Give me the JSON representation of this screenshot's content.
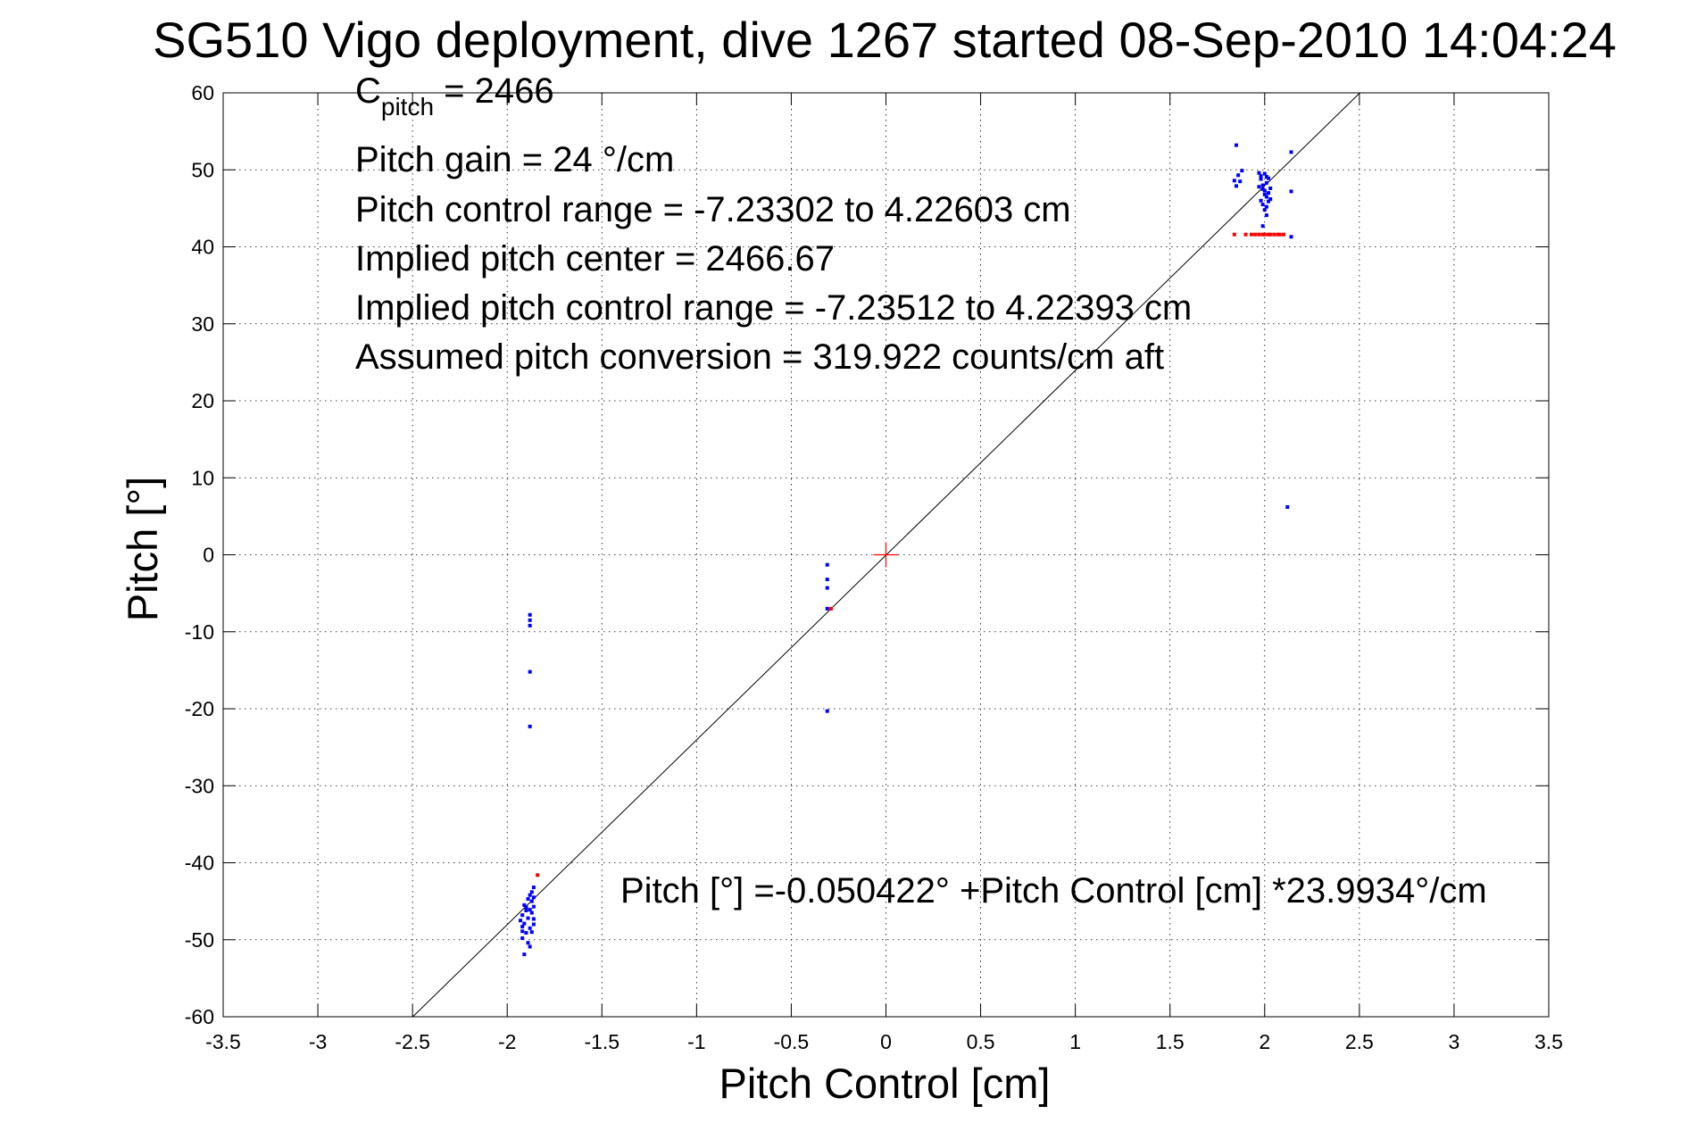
{
  "chart_data": {
    "type": "scatter",
    "title": "SG510 Vigo deployment, dive 1267 started 08-Sep-2010 14:04:24",
    "xlabel": "Pitch Control [cm]",
    "ylabel": "Pitch [°]",
    "xlim": [
      -3.5,
      3.5
    ],
    "ylim": [
      -60,
      60
    ],
    "xticks": [
      -3.5,
      -3,
      -2.5,
      -2,
      -1.5,
      -1,
      -0.5,
      0,
      0.5,
      1,
      1.5,
      2,
      2.5,
      3,
      3.5
    ],
    "xtick_labels": [
      "-3.5",
      "-3",
      "-2.5",
      "-2",
      "-1.5",
      "-1",
      "-0.5",
      "0",
      "0.5",
      "1",
      "1.5",
      "2",
      "2.5",
      "3",
      "3.5"
    ],
    "yticks": [
      -60,
      -50,
      -40,
      -30,
      -20,
      -10,
      0,
      10,
      20,
      30,
      40,
      50,
      60
    ],
    "ytick_labels": [
      "-60",
      "-50",
      "-40",
      "-30",
      "-20",
      "-10",
      "0",
      "10",
      "20",
      "30",
      "40",
      "50",
      "60"
    ],
    "grid": true,
    "annotations": {
      "c_pitch_main": "C",
      "c_pitch_sub": "pitch",
      "c_pitch_value": " = 2466",
      "lines": [
        "Pitch gain = 24 °/cm",
        "Pitch control range = -7.23302 to 4.22603 cm",
        "Implied pitch center = 2466.67",
        "Implied pitch control range = -7.23512 to 4.22393 cm",
        "Assumed pitch conversion = 319.922 counts/cm aft"
      ],
      "fit_equation": "Pitch [°] =-0.050422° +Pitch Control [cm] *23.9934°/cm"
    },
    "fit_line": {
      "intercept": -0.050422,
      "slope": 23.9934,
      "color": "#000000"
    },
    "center_marker": {
      "x": 0,
      "y": 0,
      "color": "#ff0000"
    },
    "series": [
      {
        "color": "#0000ff",
        "points": [
          [
            -1.88,
            -7.8
          ],
          [
            -1.88,
            -8.5
          ],
          [
            -1.88,
            -9.2
          ],
          [
            -1.88,
            -15.2
          ],
          [
            -1.88,
            -22.3
          ],
          [
            -1.91,
            -45.5
          ],
          [
            -1.9,
            -46.2
          ],
          [
            -1.92,
            -46.8
          ],
          [
            -1.89,
            -47.2
          ],
          [
            -1.91,
            -47.9
          ],
          [
            -1.92,
            -48.3
          ],
          [
            -1.9,
            -49.1
          ],
          [
            -1.92,
            -49.8
          ],
          [
            -1.89,
            -50.4
          ],
          [
            -1.91,
            -51.9
          ],
          [
            -1.88,
            -46.1
          ],
          [
            -1.87,
            -45.0
          ],
          [
            -1.86,
            -44.5
          ],
          [
            -1.87,
            -43.8
          ],
          [
            -1.86,
            -43.2
          ],
          [
            -1.88,
            -48.5
          ],
          [
            -1.87,
            -49.0
          ],
          [
            -1.86,
            -47.3
          ],
          [
            -1.89,
            -44.7
          ],
          [
            -1.9,
            -45.8
          ],
          [
            -1.93,
            -47.5
          ],
          [
            -1.92,
            -48.9
          ],
          [
            -1.88,
            -50.9
          ],
          [
            -1.86,
            -48.0
          ],
          [
            -1.87,
            -46.5
          ],
          [
            -1.88,
            -44.2
          ],
          [
            -1.86,
            -45.7
          ],
          [
            -0.31,
            -1.3
          ],
          [
            -0.31,
            -3.2
          ],
          [
            -0.31,
            -4.3
          ],
          [
            -0.31,
            -7.0
          ],
          [
            -0.31,
            -20.3
          ],
          [
            1.85,
            53.2
          ],
          [
            1.84,
            48.6
          ],
          [
            1.85,
            47.9
          ],
          [
            1.86,
            49.3
          ],
          [
            1.87,
            48.5
          ],
          [
            1.88,
            49.9
          ],
          [
            1.97,
            49.6
          ],
          [
            1.98,
            48.8
          ],
          [
            1.99,
            48.0
          ],
          [
            2.0,
            47.3
          ],
          [
            2.01,
            46.5
          ],
          [
            2.02,
            45.9
          ],
          [
            1.98,
            49.2
          ],
          [
            1.99,
            47.5
          ],
          [
            2.0,
            46.8
          ],
          [
            2.01,
            48.3
          ],
          [
            2.02,
            47.0
          ],
          [
            2.03,
            46.2
          ],
          [
            1.99,
            45.5
          ],
          [
            2.0,
            44.8
          ],
          [
            2.01,
            44.1
          ],
          [
            1.98,
            46.0
          ],
          [
            2.02,
            48.9
          ],
          [
            2.0,
            49.5
          ],
          [
            2.14,
            52.3
          ],
          [
            2.14,
            47.2
          ],
          [
            2.12,
            6.2
          ],
          [
            2.14,
            41.3
          ],
          [
            2.03,
            47.6
          ],
          [
            1.97,
            47.8
          ],
          [
            2.01,
            45.2
          ],
          [
            1.99,
            42.7
          ],
          [
            2.01,
            49.1
          ]
        ]
      },
      {
        "color": "#ff0000",
        "points": [
          [
            -1.84,
            -41.6
          ],
          [
            -0.29,
            -7.0
          ],
          [
            1.84,
            41.6
          ],
          [
            1.9,
            41.6
          ],
          [
            1.93,
            41.6
          ],
          [
            1.95,
            41.6
          ],
          [
            1.97,
            41.6
          ],
          [
            1.99,
            41.6
          ],
          [
            2.0,
            41.6
          ],
          [
            2.02,
            41.6
          ],
          [
            2.03,
            41.6
          ],
          [
            2.05,
            41.6
          ],
          [
            2.07,
            41.6
          ],
          [
            2.08,
            41.6
          ],
          [
            2.1,
            41.6
          ]
        ]
      }
    ]
  }
}
